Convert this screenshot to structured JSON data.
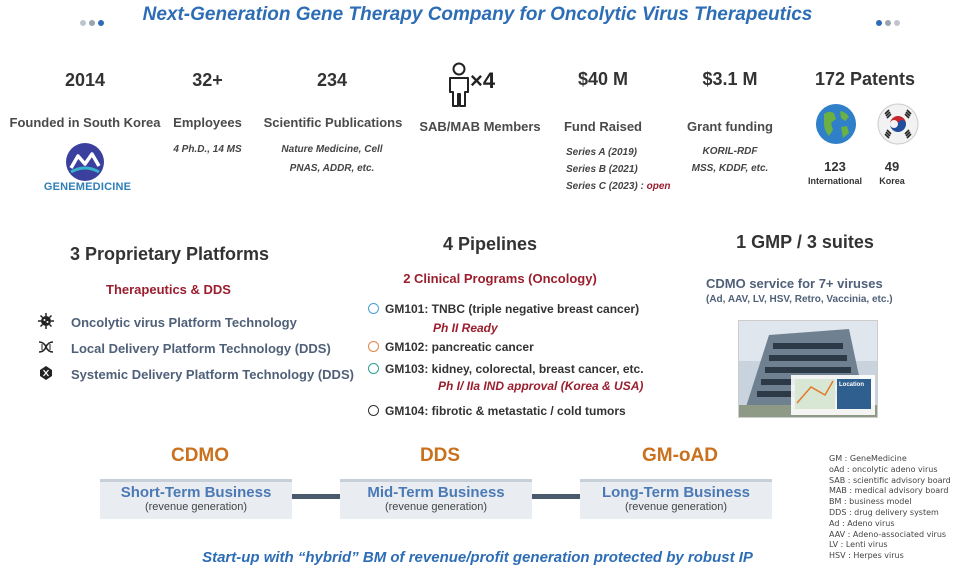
{
  "header": {
    "title": "Next-Generation Gene Therapy Company for Oncolytic Virus Therapeutics"
  },
  "stats": {
    "founded": {
      "value": "2014",
      "label": "Founded in South Korea"
    },
    "employees": {
      "value": "32+",
      "label": "Employees",
      "detail": "4 Ph.D., 14 MS"
    },
    "publications": {
      "value": "234",
      "label": "Scientific Publications",
      "detail_1": "Nature Medicine, Cell",
      "detail_2": "PNAS, ADDR, etc."
    },
    "sab": {
      "value": "×4",
      "label": "SAB/MAB Members"
    },
    "fund": {
      "value": "$40 M",
      "label": "Fund Raised",
      "series_a": "Series A (2019)",
      "series_b": "Series B (2021)",
      "series_c": "Series C (2023) :",
      "series_c_status": "open"
    },
    "grant": {
      "value": "$3.1 M",
      "label": "Grant funding",
      "detail_1": "KORIL-RDF",
      "detail_2": "MSS, KDDF, etc."
    },
    "patents": {
      "value": "172 Patents",
      "intl_count": "123",
      "intl_label": "International",
      "korea_count": "49",
      "korea_label": "Korea"
    }
  },
  "logo": {
    "text": "GENEMEDICINE"
  },
  "platforms": {
    "title": "3 Proprietary Platforms",
    "subtitle": "Therapeutics & DDS",
    "items": [
      "Oncolytic virus Platform Technology",
      "Local Delivery Platform Technology (DDS)",
      "Systemic Delivery Platform Technology (DDS)"
    ]
  },
  "pipelines": {
    "title": "4 Pipelines",
    "subtitle": "2 Clinical Programs (Oncology)",
    "items": [
      {
        "text": "GM101: TNBC (triple negative breast cancer)",
        "note": "Ph II Ready",
        "color": "#4a9fd6"
      },
      {
        "text": "GM102: pancreatic cancer",
        "note": "",
        "color": "#e0864a"
      },
      {
        "text": "GM103: kidney, colorectal, breast cancer, etc.",
        "note": "Ph I/ IIa IND approval (Korea & USA)",
        "color": "#2f9e8f"
      },
      {
        "text": "GM104: fibrotic & metastatic / cold tumors",
        "note": "",
        "color": "#333333"
      }
    ]
  },
  "gmp": {
    "title": "1 GMP / 3 suites",
    "subtitle": "CDMO service for 7+ viruses",
    "detail": "(Ad, AAV, LV, HSV, Retro, Vaccinia, etc.)",
    "photo_caption": "Location"
  },
  "roadmap": [
    {
      "phase": "CDMO",
      "title": "Short-Term Business",
      "sub": "(revenue generation)"
    },
    {
      "phase": "DDS",
      "title": "Mid-Term Business",
      "sub": "(revenue generation)"
    },
    {
      "phase": "GM-oAD",
      "title": "Long-Term Business",
      "sub": "(revenue generation)"
    }
  ],
  "abbreviations": [
    "GM   : GeneMedicine",
    "oAd  : oncolytic adeno virus",
    "SAB  : scientific advisory board",
    "MAB : medical advisory board",
    "BM    : business model",
    "DDS  : drug delivery system",
    "Ad     : Adeno virus",
    "AAV   : Adeno-associated virus",
    "LV     : Lenti virus",
    "HSV   : Herpes virus"
  ],
  "footer": {
    "tagline": "Start-up with “hybrid” BM of revenue/profit generation protected by robust IP"
  },
  "colors": {
    "accent_blue": "#2d6db5",
    "dark_red": "#9a1e2e",
    "orange": "#c9711d",
    "slate": "#4f6078"
  }
}
